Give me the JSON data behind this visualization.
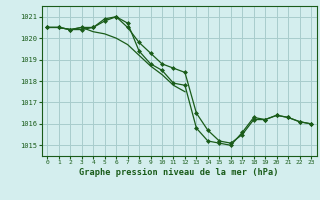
{
  "title": "Graphe pression niveau de la mer (hPa)",
  "background_color": "#d4eeee",
  "grid_color": "#a8cccc",
  "line_color": "#1a5c1a",
  "marker_color": "#1a5c1a",
  "xlim": [
    -0.5,
    23.5
  ],
  "ylim": [
    1014.5,
    1021.5
  ],
  "yticks": [
    1015,
    1016,
    1017,
    1018,
    1019,
    1020,
    1021
  ],
  "xticks": [
    0,
    1,
    2,
    3,
    4,
    5,
    6,
    7,
    8,
    9,
    10,
    11,
    12,
    13,
    14,
    15,
    16,
    17,
    18,
    19,
    20,
    21,
    22,
    23
  ],
  "series1_x": [
    0,
    1,
    2,
    3,
    4,
    5,
    6,
    7,
    8,
    9,
    10,
    11,
    12,
    13,
    14,
    15,
    16,
    17,
    18,
    19,
    20,
    21,
    22,
    23
  ],
  "series1_y": [
    1020.5,
    1020.5,
    1020.4,
    1020.5,
    1020.5,
    1020.9,
    1021.0,
    1020.7,
    1019.4,
    1018.8,
    1018.5,
    1017.9,
    1017.8,
    1015.8,
    1015.2,
    1015.1,
    1015.0,
    1015.6,
    1016.3,
    1016.2,
    1016.4,
    1016.3,
    1016.1,
    1016.0
  ],
  "series2_x": [
    0,
    1,
    2,
    3,
    4,
    5,
    6,
    7,
    8,
    9,
    10,
    11,
    12
  ],
  "series2_y": [
    1020.5,
    1020.5,
    1020.4,
    1020.5,
    1020.3,
    1020.2,
    1020.0,
    1019.7,
    1019.2,
    1018.7,
    1018.3,
    1017.8,
    1017.5
  ],
  "series3_x": [
    0,
    1,
    2,
    3,
    4,
    5,
    6,
    7,
    8,
    9,
    10,
    11,
    12,
    13,
    14,
    15,
    16,
    17,
    18,
    19,
    20,
    21,
    22,
    23
  ],
  "series3_y": [
    1020.5,
    1020.5,
    1020.4,
    1020.4,
    1020.5,
    1020.8,
    1021.0,
    1020.5,
    1019.8,
    1019.3,
    1018.8,
    1018.6,
    1018.4,
    1016.5,
    1015.7,
    1015.2,
    1015.1,
    1015.5,
    1016.2,
    1016.2,
    1016.4,
    1016.3,
    1016.1,
    1016.0
  ]
}
